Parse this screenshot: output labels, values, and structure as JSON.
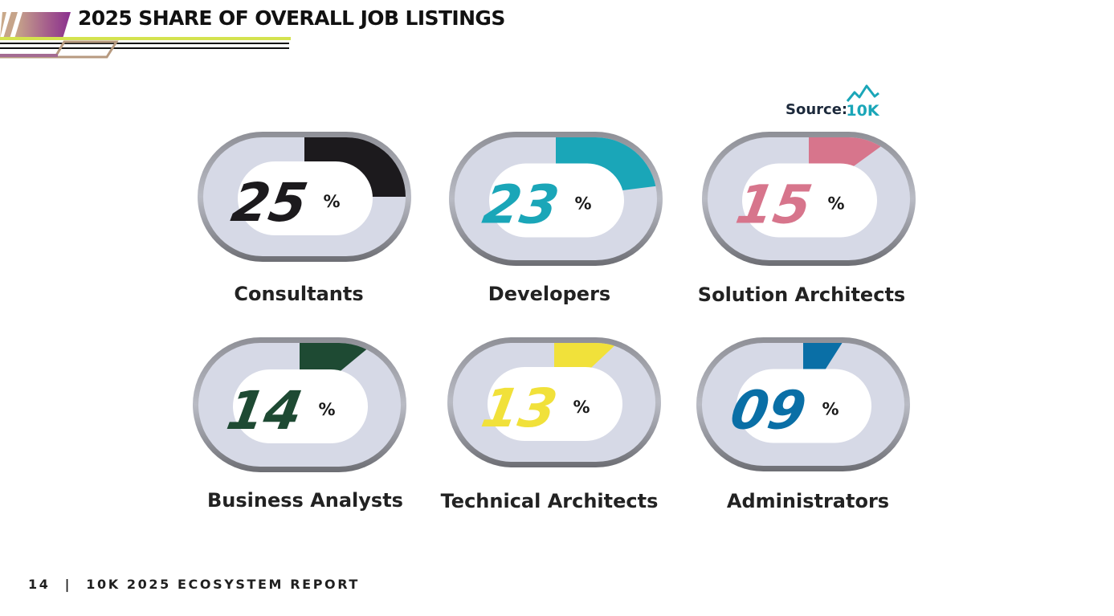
{
  "header": {
    "title": "2025 SHARE OF OVERALL JOB LISTINGS"
  },
  "source": {
    "label": "Source:",
    "logo_text": "10K",
    "logo_icon": "mountain-icon"
  },
  "footer": {
    "page": "14",
    "separator": "|",
    "report": "10K 2025 ECOSYSTEM REPORT"
  },
  "colors": {
    "consultants": "#1c1a1d",
    "developers": "#1aa6b8",
    "solution_architects": "#d7758c",
    "business_analysts": "#1e4a33",
    "technical_architects": "#f1e13a",
    "administrators": "#0a6fa6",
    "track": "#d6d9e6",
    "logo": "#1aa6b8"
  },
  "chart_data": {
    "type": "pie",
    "title": "2025 SHARE OF OVERALL JOB LISTINGS",
    "unit": "%",
    "categories": [
      "Consultants",
      "Developers",
      "Solution Architects",
      "Business Analysts",
      "Technical Architects",
      "Administrators"
    ],
    "values": [
      25,
      23,
      15,
      14,
      13,
      9
    ],
    "display_values": [
      "25",
      "23",
      "15",
      "14",
      "13",
      "09"
    ]
  }
}
